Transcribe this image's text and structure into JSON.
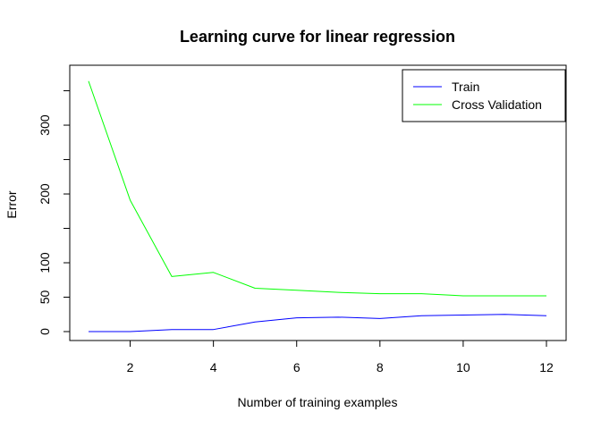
{
  "chart_data": {
    "type": "line",
    "title": "Learning curve for linear regression",
    "xlabel": "Number of training examples",
    "ylabel": "Error",
    "xlim": [
      1,
      12
    ],
    "ylim": [
      0,
      365
    ],
    "x_ticks": [
      2,
      4,
      6,
      8,
      10,
      12
    ],
    "y_ticks": [
      0,
      50,
      100,
      200,
      300
    ],
    "x": [
      1,
      2,
      3,
      4,
      5,
      6,
      7,
      8,
      9,
      10,
      11,
      12
    ],
    "series": [
      {
        "name": "Train",
        "color": "#0000ff",
        "values": [
          0,
          0,
          3,
          3,
          14,
          20,
          21,
          19,
          23,
          24,
          25,
          23
        ]
      },
      {
        "name": "Cross Validation",
        "color": "#00ff00",
        "values": [
          364,
          191,
          80,
          86,
          63,
          60,
          57,
          55,
          55,
          52,
          52,
          52
        ]
      }
    ],
    "legend_position": "top-right",
    "grid": false
  }
}
